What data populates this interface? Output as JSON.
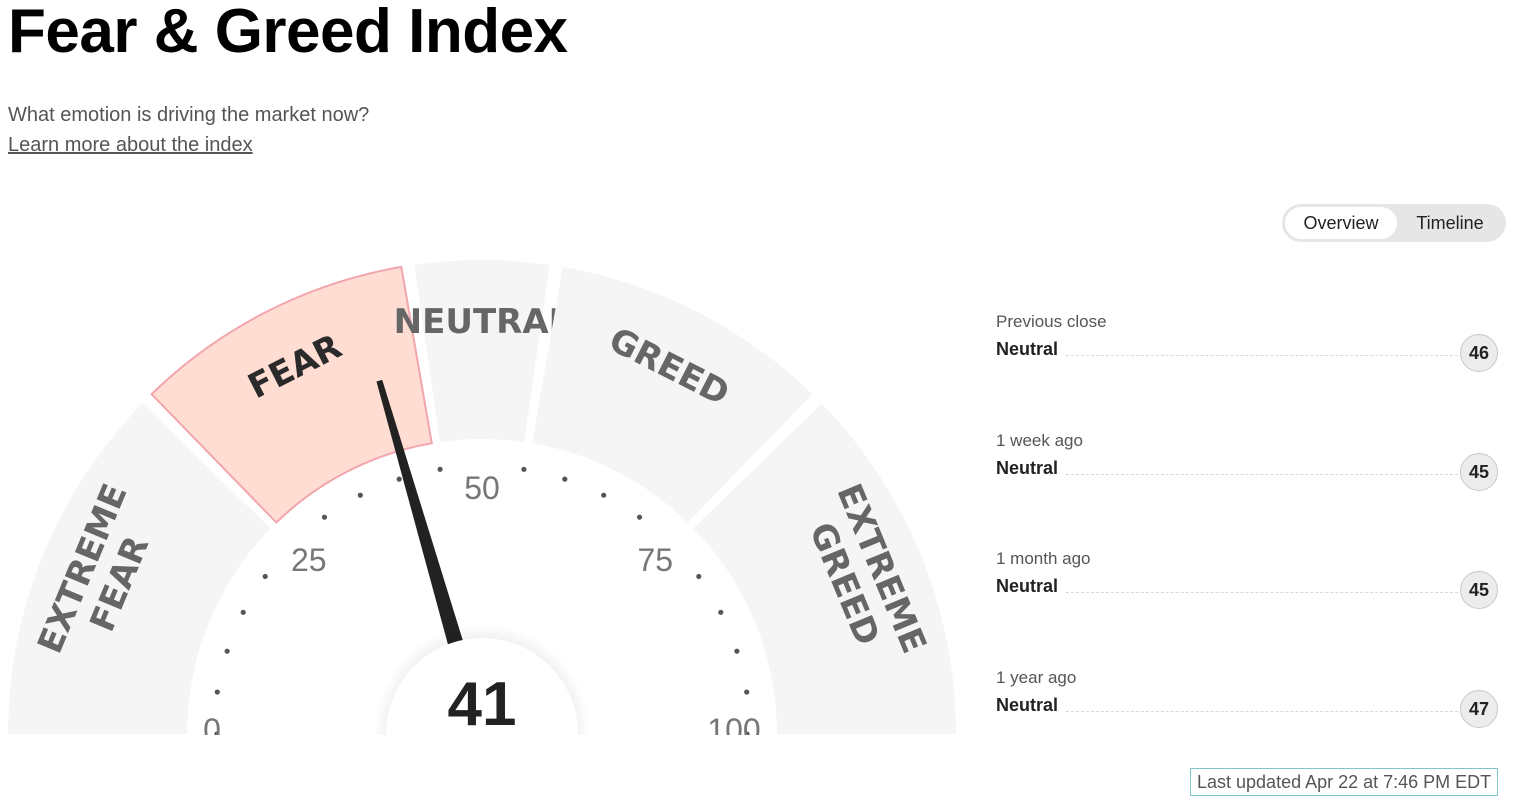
{
  "header": {
    "title": "Fear & Greed Index",
    "subtitle": "What emotion is driving the market now?",
    "learn_more": "Learn more about the index"
  },
  "toggle": {
    "options": [
      "Overview",
      "Timeline"
    ],
    "selected": "Overview"
  },
  "gauge": {
    "value": 41,
    "value_label": "41",
    "scale": {
      "min": 0,
      "max": 100
    },
    "ticks": [
      "0",
      "25",
      "50",
      "75",
      "100"
    ],
    "segments": [
      {
        "label_lines": [
          "EXTREME",
          "FEAR"
        ],
        "from": 0,
        "to": 25
      },
      {
        "label_lines": [
          "FEAR"
        ],
        "from": 25,
        "to": 45,
        "active": true
      },
      {
        "label_lines": [
          "NEUTRAL"
        ],
        "from": 45,
        "to": 55
      },
      {
        "label_lines": [
          "GREED"
        ],
        "from": 55,
        "to": 75
      },
      {
        "label_lines": [
          "EXTREME",
          "GREED"
        ],
        "from": 75,
        "to": 100
      }
    ],
    "colors": {
      "segment": "#f5f5f5",
      "active_fill": "#ffddd3",
      "active_stroke": "#f3a5ad",
      "label": "#666666",
      "needle": "#222222"
    }
  },
  "history": [
    {
      "label": "Previous close",
      "rating": "Neutral",
      "value": "46"
    },
    {
      "label": "1 week ago",
      "rating": "Neutral",
      "value": "45"
    },
    {
      "label": "1 month ago",
      "rating": "Neutral",
      "value": "45"
    },
    {
      "label": "1 year ago",
      "rating": "Neutral",
      "value": "47"
    }
  ],
  "last_updated": "Last updated Apr 22 at 7:46 PM EDT"
}
